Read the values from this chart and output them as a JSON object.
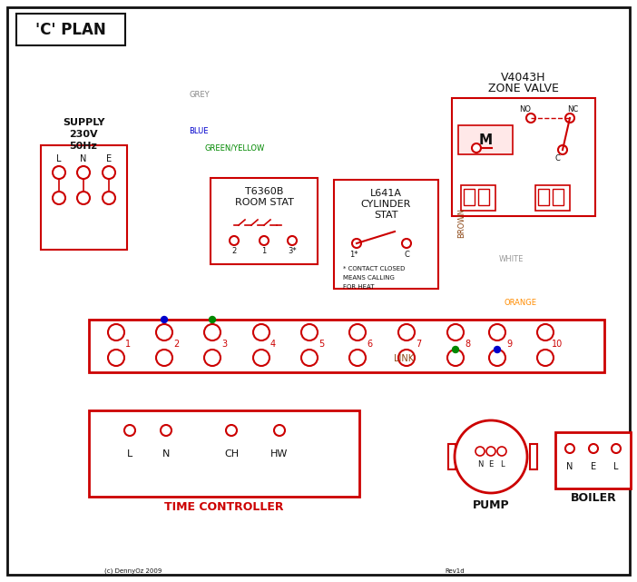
{
  "title": "'C' PLAN",
  "red": "#cc0000",
  "blue": "#0000cc",
  "green": "#008800",
  "grey": "#888888",
  "brown": "#8B4513",
  "orange": "#FF8C00",
  "black": "#111111",
  "white_wire": "#999999",
  "supply_text": [
    "SUPPLY",
    "230V",
    "50Hz"
  ],
  "zone_valve_text": [
    "V4043H",
    "ZONE VALVE"
  ],
  "room_stat_text": [
    "T6360B",
    "ROOM STAT"
  ],
  "cylinder_stat_text": [
    "L641A",
    "CYLINDER",
    "STAT"
  ],
  "time_controller_text": "TIME CONTROLLER",
  "pump_text": "PUMP",
  "boiler_text": "BOILER",
  "link_text": "LINK",
  "terminal_labels": [
    "1",
    "2",
    "3",
    "4",
    "5",
    "6",
    "7",
    "8",
    "9",
    "10"
  ],
  "lne_labels": [
    "L",
    "N",
    "E"
  ],
  "tc_labels": [
    "L",
    "N",
    "CH",
    "HW"
  ],
  "copyright_text": "(c) DennyOz 2009",
  "rev_text": "Rev1d"
}
